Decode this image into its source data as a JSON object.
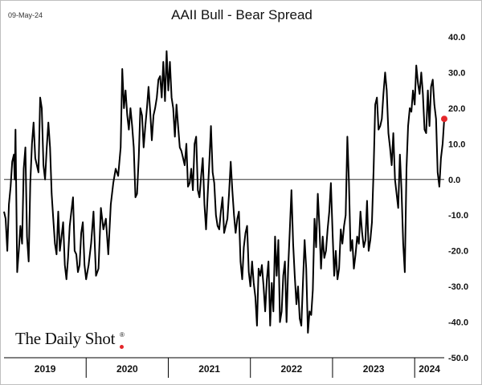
{
  "header": {
    "date": "09-May-24",
    "title": "AAII Bull - Bear Spread"
  },
  "branding": {
    "name": "The Daily Shot",
    "reg_mark": "®"
  },
  "colors": {
    "series_line": "#000000",
    "marker": "#e4262a",
    "axis": "#000000",
    "brand_dot": "#e4262a"
  },
  "chart_data": {
    "type": "line",
    "title": "AAII Bull - Bear Spread",
    "xlabel": "",
    "ylabel": "",
    "ylim": [
      -50,
      40
    ],
    "y_ticks": [
      "40.0",
      "30.0",
      "20.0",
      "10.0",
      "0.0",
      "-10.0",
      "-20.0",
      "-30.0",
      "-40.0",
      "-50.0"
    ],
    "x_years": [
      {
        "label": "2019",
        "start": 2019.0,
        "end": 2020.0
      },
      {
        "label": "2020",
        "start": 2020.0,
        "end": 2021.0
      },
      {
        "label": "2021",
        "start": 2021.0,
        "end": 2022.0
      },
      {
        "label": "2022",
        "start": 2022.0,
        "end": 2023.0
      },
      {
        "label": "2023",
        "start": 2023.0,
        "end": 2024.0
      },
      {
        "label": "2024",
        "start": 2024.0,
        "end": 2024.36
      }
    ],
    "grid": false,
    "zero_line": true,
    "last_point_marker": true,
    "series": [
      {
        "points": [
          [
            2019.0,
            -9
          ],
          [
            2019.02,
            -11
          ],
          [
            2019.04,
            -20
          ],
          [
            2019.06,
            -7
          ],
          [
            2019.08,
            -2
          ],
          [
            2019.1,
            5
          ],
          [
            2019.12,
            7
          ],
          [
            2019.13,
            0
          ],
          [
            2019.14,
            14
          ],
          [
            2019.16,
            -26
          ],
          [
            2019.18,
            -20
          ],
          [
            2019.2,
            -13
          ],
          [
            2019.22,
            -18
          ],
          [
            2019.24,
            3
          ],
          [
            2019.26,
            9
          ],
          [
            2019.28,
            -16
          ],
          [
            2019.3,
            -23
          ],
          [
            2019.32,
            -1
          ],
          [
            2019.34,
            10
          ],
          [
            2019.36,
            16
          ],
          [
            2019.38,
            6
          ],
          [
            2019.4,
            4
          ],
          [
            2019.42,
            2
          ],
          [
            2019.44,
            23
          ],
          [
            2019.46,
            20
          ],
          [
            2019.48,
            4
          ],
          [
            2019.5,
            0
          ],
          [
            2019.52,
            9
          ],
          [
            2019.54,
            16
          ],
          [
            2019.56,
            9
          ],
          [
            2019.58,
            -4
          ],
          [
            2019.6,
            -11
          ],
          [
            2019.62,
            -18
          ],
          [
            2019.64,
            -21
          ],
          [
            2019.66,
            -9
          ],
          [
            2019.68,
            -20
          ],
          [
            2019.7,
            -16
          ],
          [
            2019.72,
            -12
          ],
          [
            2019.74,
            -24
          ],
          [
            2019.76,
            -28
          ],
          [
            2019.78,
            -22
          ],
          [
            2019.8,
            -13
          ],
          [
            2019.82,
            -9
          ],
          [
            2019.84,
            -5
          ],
          [
            2019.86,
            -20
          ],
          [
            2019.88,
            -21
          ],
          [
            2019.9,
            -26
          ],
          [
            2019.92,
            -24
          ],
          [
            2019.94,
            -15
          ],
          [
            2019.96,
            -12
          ],
          [
            2019.98,
            -24
          ],
          [
            2020.0,
            -28
          ],
          [
            2020.03,
            -24
          ],
          [
            2020.06,
            -18
          ],
          [
            2020.09,
            -9
          ],
          [
            2020.12,
            -27
          ],
          [
            2020.15,
            -25
          ],
          [
            2020.18,
            -8
          ],
          [
            2020.21,
            -14
          ],
          [
            2020.24,
            -11
          ],
          [
            2020.27,
            -21
          ],
          [
            2020.3,
            -7
          ],
          [
            2020.33,
            -1
          ],
          [
            2020.36,
            3
          ],
          [
            2020.39,
            1
          ],
          [
            2020.42,
            9
          ],
          [
            2020.44,
            31
          ],
          [
            2020.46,
            20
          ],
          [
            2020.48,
            25
          ],
          [
            2020.5,
            18
          ],
          [
            2020.52,
            14
          ],
          [
            2020.54,
            20
          ],
          [
            2020.56,
            15
          ],
          [
            2020.58,
            9
          ],
          [
            2020.6,
            -5
          ],
          [
            2020.62,
            -4
          ],
          [
            2020.64,
            6
          ],
          [
            2020.66,
            20
          ],
          [
            2020.68,
            18
          ],
          [
            2020.7,
            9
          ],
          [
            2020.72,
            15
          ],
          [
            2020.74,
            20
          ],
          [
            2020.76,
            26
          ],
          [
            2020.78,
            19
          ],
          [
            2020.8,
            11
          ],
          [
            2020.82,
            18
          ],
          [
            2020.84,
            20
          ],
          [
            2020.86,
            23
          ],
          [
            2020.88,
            28
          ],
          [
            2020.9,
            29
          ],
          [
            2020.92,
            23
          ],
          [
            2020.94,
            33
          ],
          [
            2020.96,
            22
          ],
          [
            2020.98,
            36
          ],
          [
            2021.0,
            25
          ],
          [
            2021.02,
            33
          ],
          [
            2021.04,
            23
          ],
          [
            2021.06,
            20
          ],
          [
            2021.08,
            12
          ],
          [
            2021.1,
            21
          ],
          [
            2021.12,
            15
          ],
          [
            2021.14,
            9
          ],
          [
            2021.16,
            8
          ],
          [
            2021.18,
            6
          ],
          [
            2021.2,
            4
          ],
          [
            2021.22,
            10
          ],
          [
            2021.24,
            -2
          ],
          [
            2021.26,
            -1
          ],
          [
            2021.28,
            3
          ],
          [
            2021.3,
            -3
          ],
          [
            2021.32,
            10
          ],
          [
            2021.34,
            12
          ],
          [
            2021.36,
            -3
          ],
          [
            2021.38,
            -5
          ],
          [
            2021.4,
            1
          ],
          [
            2021.42,
            6
          ],
          [
            2021.44,
            -7
          ],
          [
            2021.46,
            -14
          ],
          [
            2021.48,
            -4
          ],
          [
            2021.5,
            5
          ],
          [
            2021.52,
            15
          ],
          [
            2021.54,
            2
          ],
          [
            2021.56,
            -1
          ],
          [
            2021.58,
            -10
          ],
          [
            2021.6,
            -13
          ],
          [
            2021.62,
            -14
          ],
          [
            2021.64,
            -9
          ],
          [
            2021.66,
            -5
          ],
          [
            2021.68,
            -15
          ],
          [
            2021.7,
            -13
          ],
          [
            2021.72,
            -11
          ],
          [
            2021.74,
            -4
          ],
          [
            2021.76,
            5
          ],
          [
            2021.78,
            -3
          ],
          [
            2021.8,
            -10
          ],
          [
            2021.82,
            -15
          ],
          [
            2021.84,
            -11
          ],
          [
            2021.86,
            -9
          ],
          [
            2021.88,
            -23
          ],
          [
            2021.9,
            -28
          ],
          [
            2021.92,
            -19
          ],
          [
            2021.94,
            -15
          ],
          [
            2021.96,
            -13
          ],
          [
            2021.98,
            -26
          ],
          [
            2022.0,
            -30
          ],
          [
            2022.02,
            -23
          ],
          [
            2022.04,
            -29
          ],
          [
            2022.06,
            -33
          ],
          [
            2022.08,
            -41
          ],
          [
            2022.1,
            -25
          ],
          [
            2022.12,
            -27
          ],
          [
            2022.14,
            -24
          ],
          [
            2022.16,
            -30
          ],
          [
            2022.18,
            -37
          ],
          [
            2022.2,
            -28
          ],
          [
            2022.22,
            -23
          ],
          [
            2022.24,
            -41
          ],
          [
            2022.26,
            -29
          ],
          [
            2022.28,
            -37
          ],
          [
            2022.3,
            -16
          ],
          [
            2022.32,
            -27
          ],
          [
            2022.34,
            -17
          ],
          [
            2022.36,
            -40
          ],
          [
            2022.38,
            -37
          ],
          [
            2022.4,
            -27
          ],
          [
            2022.42,
            -23
          ],
          [
            2022.44,
            -40
          ],
          [
            2022.46,
            -25
          ],
          [
            2022.48,
            -14
          ],
          [
            2022.5,
            -3
          ],
          [
            2022.52,
            -18
          ],
          [
            2022.54,
            -27
          ],
          [
            2022.56,
            -35
          ],
          [
            2022.58,
            -30
          ],
          [
            2022.6,
            -39
          ],
          [
            2022.62,
            -41
          ],
          [
            2022.64,
            -29
          ],
          [
            2022.66,
            -17
          ],
          [
            2022.68,
            -25
          ],
          [
            2022.7,
            -43
          ],
          [
            2022.72,
            -37
          ],
          [
            2022.74,
            -38
          ],
          [
            2022.76,
            -31
          ],
          [
            2022.78,
            -11
          ],
          [
            2022.8,
            -19
          ],
          [
            2022.82,
            -4
          ],
          [
            2022.84,
            -13
          ],
          [
            2022.86,
            -25
          ],
          [
            2022.88,
            -16
          ],
          [
            2022.9,
            -22
          ],
          [
            2022.92,
            -20
          ],
          [
            2022.94,
            -14
          ],
          [
            2022.96,
            -9
          ],
          [
            2022.98,
            -1
          ],
          [
            2023.0,
            -15
          ],
          [
            2023.02,
            -27
          ],
          [
            2023.04,
            -20
          ],
          [
            2023.06,
            -28
          ],
          [
            2023.08,
            -25
          ],
          [
            2023.1,
            -14
          ],
          [
            2023.12,
            -18
          ],
          [
            2023.14,
            -13
          ],
          [
            2023.16,
            -10
          ],
          [
            2023.18,
            12
          ],
          [
            2023.2,
            -1
          ],
          [
            2023.22,
            -20
          ],
          [
            2023.24,
            -17
          ],
          [
            2023.26,
            -25
          ],
          [
            2023.28,
            -21
          ],
          [
            2023.3,
            -16
          ],
          [
            2023.32,
            -18
          ],
          [
            2023.34,
            -9
          ],
          [
            2023.36,
            -15
          ],
          [
            2023.38,
            -19
          ],
          [
            2023.4,
            -17
          ],
          [
            2023.42,
            -6
          ],
          [
            2023.44,
            -20
          ],
          [
            2023.46,
            -17
          ],
          [
            2023.48,
            -12
          ],
          [
            2023.5,
            3
          ],
          [
            2023.52,
            21
          ],
          [
            2023.54,
            23
          ],
          [
            2023.56,
            14
          ],
          [
            2023.58,
            15
          ],
          [
            2023.6,
            17
          ],
          [
            2023.62,
            24
          ],
          [
            2023.64,
            30
          ],
          [
            2023.66,
            25
          ],
          [
            2023.68,
            13
          ],
          [
            2023.7,
            9
          ],
          [
            2023.72,
            4
          ],
          [
            2023.74,
            13
          ],
          [
            2023.76,
            0
          ],
          [
            2023.78,
            -4
          ],
          [
            2023.8,
            -8
          ],
          [
            2023.82,
            7
          ],
          [
            2023.84,
            -3
          ],
          [
            2023.86,
            -18
          ],
          [
            2023.88,
            -26
          ],
          [
            2023.9,
            3
          ],
          [
            2023.92,
            15
          ],
          [
            2023.94,
            20
          ],
          [
            2023.96,
            19
          ],
          [
            2023.98,
            25
          ],
          [
            2024.0,
            21
          ],
          [
            2024.02,
            32
          ],
          [
            2024.04,
            27
          ],
          [
            2024.06,
            24
          ],
          [
            2024.08,
            30
          ],
          [
            2024.1,
            24
          ],
          [
            2024.12,
            14
          ],
          [
            2024.14,
            13
          ],
          [
            2024.16,
            25
          ],
          [
            2024.18,
            15
          ],
          [
            2024.2,
            26
          ],
          [
            2024.22,
            28
          ],
          [
            2024.24,
            21
          ],
          [
            2024.26,
            17
          ],
          [
            2024.28,
            2
          ],
          [
            2024.3,
            -2
          ],
          [
            2024.32,
            6
          ],
          [
            2024.34,
            10
          ],
          [
            2024.36,
            17
          ]
        ]
      }
    ]
  }
}
